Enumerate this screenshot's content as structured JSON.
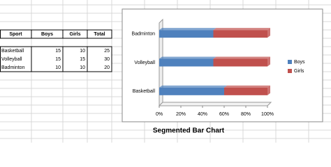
{
  "table": {
    "header": [
      "Sport",
      "Boys",
      "Girls",
      "Total"
    ],
    "rows": [
      [
        "Basketball",
        "15",
        "10",
        "25"
      ],
      [
        "Volleyball",
        "15",
        "15",
        "30"
      ],
      [
        "Badminton",
        "10",
        "10",
        "20"
      ]
    ]
  },
  "chart_data": {
    "type": "bar",
    "orientation": "horizontal",
    "stacked": true,
    "title": "Segmented Bar Chart",
    "categories": [
      "Basketball",
      "Volleyball",
      "Badminton"
    ],
    "series": [
      {
        "name": "Boys",
        "color": "#4f81bd",
        "values": [
          60,
          50,
          50
        ]
      },
      {
        "name": "Girls",
        "color": "#c0504d",
        "values": [
          40,
          50,
          50
        ]
      }
    ],
    "xlim": [
      0,
      100
    ],
    "xticks": [
      {
        "value": 0,
        "label": "0%"
      },
      {
        "value": 20,
        "label": "20%"
      },
      {
        "value": 40,
        "label": "40%"
      },
      {
        "value": 60,
        "label": "60%"
      },
      {
        "value": 80,
        "label": "80%"
      },
      {
        "value": 100,
        "label": "100%"
      }
    ],
    "legend": "right"
  }
}
